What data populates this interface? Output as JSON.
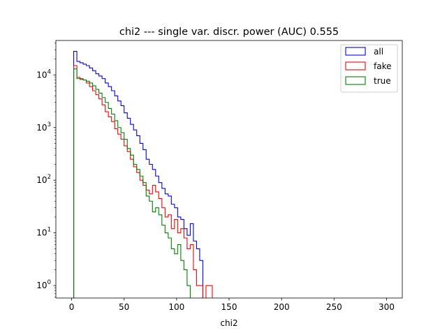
{
  "chart_data": {
    "type": "histogram",
    "title": "chi2 --- single var. discr. power (AUC) 0.555",
    "xlabel": "chi2",
    "ylabel": "",
    "xlim": [
      -15,
      315
    ],
    "ylim": [
      0.58,
      45000
    ],
    "yscale": "log",
    "grid": false,
    "legend_position": "top-right",
    "x_ticks": [
      0,
      50,
      100,
      150,
      200,
      250,
      300
    ],
    "x_tick_labels": [
      "0",
      "50",
      "100",
      "150",
      "200",
      "250",
      "300"
    ],
    "y_ticks": [
      {
        "value": 1,
        "base": "10",
        "exp": "0"
      },
      {
        "value": 10,
        "base": "10",
        "exp": "1"
      },
      {
        "value": 100,
        "base": "10",
        "exp": "2"
      },
      {
        "value": 1000,
        "base": "10",
        "exp": "3"
      },
      {
        "value": 10000,
        "base": "10",
        "exp": "4"
      }
    ],
    "bin_start": 2,
    "bin_width": 3,
    "series": [
      {
        "name": "all",
        "color": "#0000ff",
        "values": [
          28000,
          18000,
          17000,
          16000,
          15000,
          13500,
          12000,
          10500,
          9500,
          8500,
          7000,
          6000,
          5000,
          4000,
          3200,
          2600,
          1900,
          1500,
          1150,
          900,
          700,
          500,
          380,
          250,
          200,
          160,
          120,
          90,
          70,
          55,
          50,
          35,
          30,
          20,
          18,
          12,
          9,
          15,
          7,
          5,
          3,
          0,
          0,
          0
        ]
      },
      {
        "name": "fake",
        "color": "#ff0000",
        "values": [
          15000,
          9000,
          8500,
          8000,
          7000,
          6000,
          5000,
          4200,
          3500,
          2700,
          2000,
          1600,
          1300,
          950,
          750,
          600,
          450,
          350,
          250,
          180,
          140,
          100,
          80,
          65,
          55,
          80,
          60,
          45,
          30,
          20,
          22,
          12,
          18,
          10,
          12,
          8,
          5,
          6,
          2,
          1,
          1,
          0,
          1,
          1
        ]
      },
      {
        "name": "true",
        "color": "#008000",
        "values": [
          13000,
          8500,
          8200,
          8000,
          7600,
          7000,
          6200,
          5300,
          4500,
          3700,
          3000,
          2300,
          1800,
          1350,
          1000,
          800,
          600,
          400,
          300,
          200,
          160,
          120,
          90,
          50,
          40,
          25,
          30,
          22,
          14,
          10,
          8,
          5,
          4,
          6,
          3,
          2,
          1,
          0,
          0,
          0,
          0,
          0,
          0,
          0
        ]
      }
    ]
  }
}
